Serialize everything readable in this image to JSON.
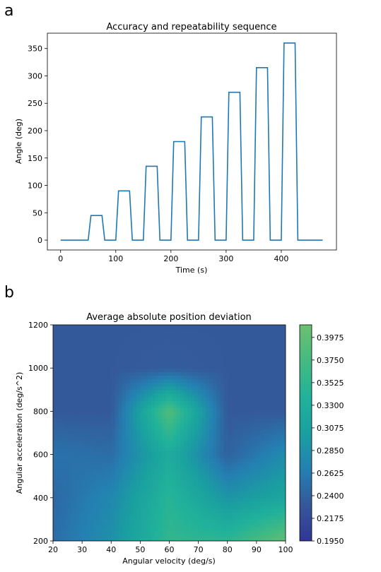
{
  "panels": {
    "a": {
      "letter": "a"
    },
    "b": {
      "letter": "b"
    }
  },
  "chart_data": [
    {
      "type": "line",
      "title": "Accuracy and repeatability sequence",
      "xlabel": "Time (s)",
      "ylabel": "Angle (deg)",
      "xlim": [
        -24,
        500
      ],
      "ylim": [
        -18,
        378
      ],
      "xticks": [
        0,
        100,
        200,
        300,
        400
      ],
      "yticks": [
        0,
        50,
        100,
        150,
        200,
        250,
        300,
        350
      ],
      "grid": false,
      "color": "#1f77b4",
      "series": [
        {
          "x": [
            0,
            50,
            55,
            75,
            80,
            100,
            105,
            125,
            130,
            150,
            155,
            175,
            180,
            200,
            205,
            225,
            230,
            250,
            255,
            275,
            280,
            300,
            305,
            325,
            330,
            350,
            355,
            375,
            380,
            400,
            405,
            425,
            430,
            475
          ],
          "y": [
            0,
            0,
            45,
            45,
            0,
            0,
            90,
            90,
            0,
            0,
            135,
            135,
            0,
            0,
            180,
            180,
            0,
            0,
            225,
            225,
            0,
            0,
            270,
            270,
            0,
            0,
            315,
            315,
            0,
            0,
            360,
            360,
            0,
            0
          ]
        }
      ]
    },
    {
      "type": "heatmap",
      "title": "Average absolute position deviation",
      "xlabel": "Angular velocity (deg/s)",
      "ylabel": "Angular acceleration (deg/s^2)",
      "xlim": [
        20,
        100
      ],
      "ylim": [
        200,
        1200
      ],
      "xticks": [
        20,
        30,
        40,
        50,
        60,
        70,
        80,
        90,
        100
      ],
      "yticks": [
        200,
        400,
        600,
        800,
        1000,
        1200
      ],
      "x": [
        20,
        40,
        60,
        80,
        100
      ],
      "y": [
        200,
        400,
        600,
        800,
        1000,
        1200
      ],
      "z": [
        [
          0.25,
          0.285,
          0.355,
          0.35,
          0.4
        ],
        [
          0.245,
          0.275,
          0.345,
          0.29,
          0.315
        ],
        [
          0.255,
          0.25,
          0.325,
          0.24,
          0.28
        ],
        [
          0.232,
          0.232,
          0.385,
          0.232,
          0.232
        ],
        [
          0.232,
          0.232,
          0.235,
          0.232,
          0.232
        ],
        [
          0.232,
          0.232,
          0.232,
          0.232,
          0.232
        ]
      ],
      "colormap": [
        "#313695",
        "#35589a",
        "#2480b2",
        "#1aa0a0",
        "#21b29a",
        "#45ba80",
        "#6cc070"
      ],
      "colorbar": {
        "min": 0.195,
        "max": 0.41,
        "ticks": [
          "0.1950",
          "0.2175",
          "0.2400",
          "0.2625",
          "0.2850",
          "0.3075",
          "0.3300",
          "0.3525",
          "0.3750",
          "0.3975"
        ]
      }
    }
  ]
}
